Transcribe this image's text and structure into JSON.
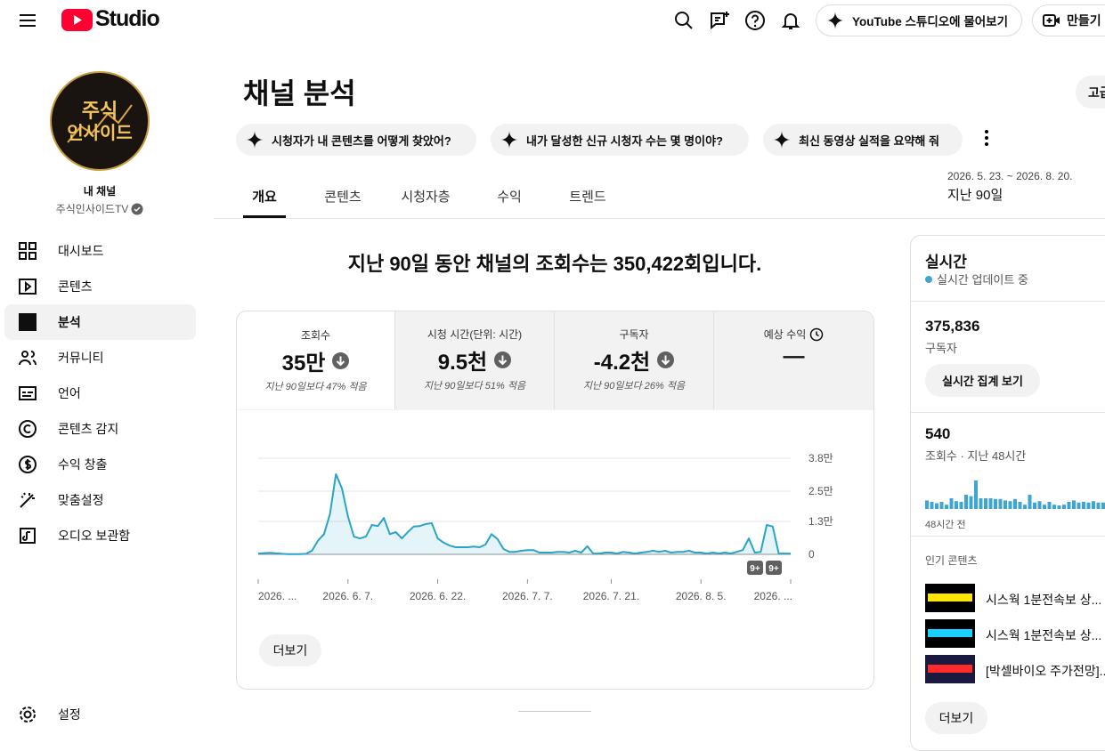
{
  "header": {
    "logo": "Studio",
    "ask": "YouTube 스튜디오에 물어보기",
    "create": "만들기"
  },
  "sidebar": {
    "avatar_text": [
      "주식",
      "인사이드"
    ],
    "channel_label": "내 채널",
    "channel_name": "주식인사이드TV",
    "nav": [
      "대시보드",
      "콘텐츠",
      "분석",
      "커뮤니티",
      "언어",
      "콘텐츠 감지",
      "수익 창출",
      "맞춤설정",
      "오디오 보관함"
    ],
    "active": 2,
    "settings": "설정"
  },
  "main": {
    "title": "채널 분석",
    "advanced": "고급",
    "prompts": [
      "시청자가 내 콘텐츠를 어떻게 찾았어?",
      "내가 달성한 신규 시청자 수는 몇 명이야?",
      "최신 동영상 실적을 요약해 줘"
    ],
    "date_range": "2026. 5. 23. ~ 2026. 8. 20.",
    "period": "지난 90일",
    "tabs": [
      "개요",
      "콘텐츠",
      "시청자층",
      "수익",
      "트렌드"
    ],
    "headline": "지난 90일 동안 채널의 조회수는 350,422회입니다.",
    "metrics": [
      {
        "label": "조회수",
        "value": "35만",
        "note": "지난 90일보다 47% 적음"
      },
      {
        "label": "시청 시간(단위: 시간)",
        "value": "9.5천",
        "note": "지난 90일보다 51% 적음"
      },
      {
        "label": "구독자",
        "value": "-4.2천",
        "note": "지난 90일보다 26% 적음"
      },
      {
        "label": "예상 수익",
        "value": "—"
      }
    ],
    "more": "더보기"
  },
  "chart_data": {
    "type": "line",
    "color": "#2aa3c8",
    "categories": [
      "2026. ...",
      null,
      null,
      null,
      null,
      null,
      null,
      null,
      null,
      null,
      null,
      null,
      null,
      null,
      null,
      "2026. 6. 7.",
      null,
      null,
      null,
      null,
      null,
      null,
      null,
      null,
      null,
      null,
      null,
      null,
      null,
      null,
      "2026. 6. 22.",
      null,
      null,
      null,
      null,
      null,
      null,
      null,
      null,
      null,
      null,
      null,
      null,
      null,
      null,
      "2026. 7. 7.",
      null,
      null,
      null,
      null,
      null,
      null,
      null,
      null,
      null,
      null,
      null,
      null,
      null,
      "2026. 7. 21.",
      null,
      null,
      null,
      null,
      null,
      null,
      null,
      null,
      null,
      null,
      null,
      null,
      null,
      null,
      "2026. 8. 5.",
      null,
      null,
      null,
      null,
      null,
      null,
      null,
      null,
      null,
      null,
      null,
      null,
      null,
      null,
      "2026. ..."
    ],
    "values": [
      300,
      500,
      600,
      400,
      200,
      100,
      100,
      100,
      200,
      1500,
      5500,
      8000,
      16000,
      31700,
      26000,
      15000,
      7000,
      6300,
      7000,
      11600,
      11200,
      14400,
      8000,
      8800,
      6300,
      8800,
      11000,
      11200,
      12000,
      12300,
      6300,
      4600,
      3500,
      2800,
      2800,
      2800,
      3100,
      2800,
      3900,
      8000,
      6000,
      2100,
      1000,
      1000,
      1400,
      1700,
      1700,
      700,
      700,
      700,
      1000,
      1000,
      700,
      1400,
      700,
      3200,
      300,
      300,
      700,
      700,
      300,
      1000,
      700,
      300,
      700,
      1000,
      1400,
      1000,
      1400,
      700,
      1000,
      1000,
      1400,
      700,
      700,
      300,
      700,
      300,
      700,
      300,
      1000,
      1700,
      6300,
      700,
      1000,
      11600,
      11000,
      300,
      300,
      300
    ],
    "ylim": [
      0,
      38000
    ],
    "yticks": [
      0,
      {
        "value": 13000,
        "label": "1.3만"
      },
      {
        "value": 25000,
        "label": "2.5만"
      },
      {
        "value": 38000,
        "label": "3.8만"
      }
    ],
    "grid": true,
    "annotations": [
      "9+",
      "9+"
    ]
  },
  "realtime": {
    "title": "실시간",
    "status": "실시간 업데이트 중",
    "subscribers": "375,836",
    "subscribers_label": "구독자",
    "button": "실시간 집계 보기",
    "views": "540",
    "views_label": "조회수 · 지난 48시간",
    "bars": [
      12,
      10,
      8,
      10,
      6,
      15,
      11,
      10,
      20,
      18,
      40,
      15,
      15,
      15,
      14,
      14,
      12,
      11,
      14,
      10,
      6,
      20,
      9,
      11,
      6,
      10,
      6,
      5,
      6,
      10,
      12,
      9,
      10,
      9,
      11,
      9,
      9
    ],
    "bars_color": "#3ea6d0",
    "bars_start": "48시간 전",
    "popular_label": "인기 콘텐츠",
    "popular": [
      "시스웍 1분전속보 상...",
      "시스웍 1분전속보 상...",
      "[박셀바이오 주가전망]..."
    ],
    "more": "더보기"
  }
}
